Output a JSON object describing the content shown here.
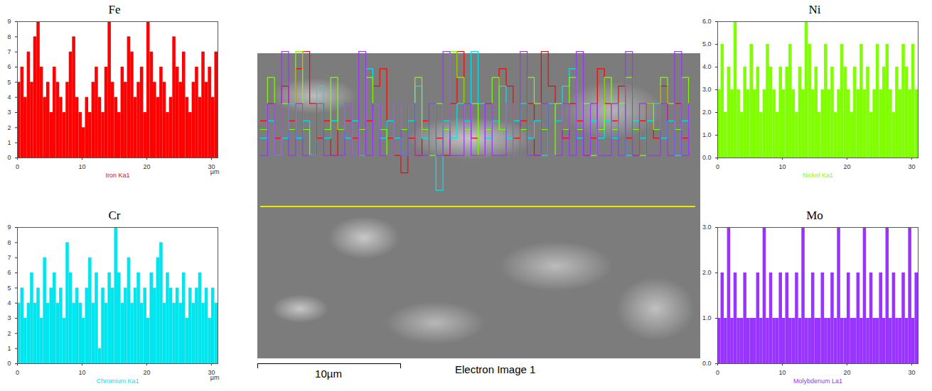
{
  "chart_data": [
    {
      "type": "bar",
      "title": "Fe",
      "xlabel": "Iron Ka1",
      "x_unit": "µm",
      "color": "#ff0000",
      "x": [
        0,
        0.5,
        1,
        1.5,
        2,
        2.5,
        3,
        3.5,
        4,
        4.5,
        5,
        5.5,
        6,
        6.5,
        7,
        7.5,
        8,
        8.5,
        9,
        9.5,
        10,
        10.5,
        11,
        11.5,
        12,
        12.5,
        13,
        13.5,
        14,
        14.5,
        15,
        15.5,
        16,
        16.5,
        17,
        17.5,
        18,
        18.5,
        19,
        19.5,
        20,
        20.5,
        21,
        21.5,
        22,
        22.5,
        23,
        23.5,
        24,
        24.5,
        25,
        25.5,
        26,
        26.5,
        27,
        27.5,
        28,
        28.5,
        29,
        29.5,
        30,
        30.5
      ],
      "values": [
        5,
        6,
        4,
        7,
        5,
        8,
        9,
        6,
        4,
        5,
        3,
        6,
        5,
        4,
        3,
        5,
        7,
        8,
        4,
        3,
        2,
        4,
        3,
        5,
        6,
        4,
        3,
        6,
        9,
        5,
        4,
        3,
        6,
        5,
        8,
        7,
        4,
        5,
        6,
        3,
        9,
        7,
        5,
        4,
        6,
        5,
        3,
        4,
        8,
        6,
        5,
        7,
        4,
        3,
        5,
        6,
        4,
        7,
        5,
        6,
        4,
        7
      ],
      "xlim": [
        0,
        31
      ],
      "xticks": [
        0,
        10,
        20,
        30
      ],
      "ylim": [
        0,
        9
      ],
      "yticks": [
        0,
        1,
        2,
        3,
        4,
        5,
        6,
        7,
        8,
        9
      ]
    },
    {
      "type": "bar",
      "title": "Cr",
      "xlabel": "Chromium Ka1",
      "x_unit": "µm",
      "color": "#00e5ee",
      "x": [
        0,
        0.5,
        1,
        1.5,
        2,
        2.5,
        3,
        3.5,
        4,
        4.5,
        5,
        5.5,
        6,
        6.5,
        7,
        7.5,
        8,
        8.5,
        9,
        9.5,
        10,
        10.5,
        11,
        11.5,
        12,
        12.5,
        13,
        13.5,
        14,
        14.5,
        15,
        15.5,
        16,
        16.5,
        17,
        17.5,
        18,
        18.5,
        19,
        19.5,
        20,
        20.5,
        21,
        21.5,
        22,
        22.5,
        23,
        23.5,
        24,
        24.5,
        25,
        25.5,
        26,
        26.5,
        27,
        27.5,
        28,
        28.5,
        29,
        29.5,
        30,
        30.5
      ],
      "values": [
        4,
        5,
        3,
        4,
        6,
        4,
        5,
        3,
        7,
        4,
        5,
        6,
        4,
        5,
        3,
        8,
        6,
        4,
        5,
        4,
        3,
        5,
        7,
        4,
        6,
        1,
        5,
        4,
        6,
        5,
        9,
        6,
        4,
        5,
        7,
        4,
        5,
        6,
        4,
        5,
        3,
        6,
        5,
        7,
        8,
        4,
        6,
        5,
        4,
        5,
        4,
        6,
        3,
        5,
        4,
        5,
        6,
        4,
        5,
        3,
        5,
        4
      ],
      "xlim": [
        0,
        31
      ],
      "xticks": [
        0,
        10,
        20,
        30
      ],
      "ylim": [
        0,
        9
      ],
      "yticks": [
        0,
        1,
        2,
        3,
        4,
        5,
        6,
        7,
        8,
        9
      ]
    },
    {
      "type": "bar",
      "title": "Ni",
      "xlabel": "Nickel Ka1",
      "color": "#80ff00",
      "x": [
        0,
        0.5,
        1,
        1.5,
        2,
        2.5,
        3,
        3.5,
        4,
        4.5,
        5,
        5.5,
        6,
        6.5,
        7,
        7.5,
        8,
        8.5,
        9,
        9.5,
        10,
        10.5,
        11,
        11.5,
        12,
        12.5,
        13,
        13.5,
        14,
        14.5,
        15,
        15.5,
        16,
        16.5,
        17,
        17.5,
        18,
        18.5,
        19,
        19.5,
        20,
        20.5,
        21,
        21.5,
        22,
        22.5,
        23,
        23.5,
        24,
        24.5,
        25,
        25.5,
        26,
        26.5,
        27,
        27.5,
        28,
        28.5,
        29,
        29.5,
        30,
        30.5
      ],
      "values": [
        3,
        5,
        2,
        4,
        3,
        6,
        3,
        2,
        4,
        3,
        5,
        3,
        4,
        2,
        3,
        5,
        4,
        3,
        2,
        4,
        3,
        4,
        5,
        3,
        2,
        4,
        3,
        6,
        5,
        3,
        4,
        2,
        3,
        5,
        3,
        4,
        2,
        3,
        5,
        4,
        3,
        2,
        4,
        3,
        5,
        3,
        4,
        2,
        3,
        5,
        3,
        4,
        5,
        3,
        2,
        4,
        3,
        5,
        4,
        3,
        5,
        3
      ],
      "xlim": [
        0,
        31
      ],
      "xticks": [
        0,
        10,
        20,
        30
      ],
      "ylim": [
        0,
        6
      ],
      "yticks": [
        0,
        1,
        2,
        3,
        4,
        5,
        6
      ]
    },
    {
      "type": "bar",
      "title": "Mo",
      "xlabel": "Molybdenum La1",
      "color": "#9933ff",
      "x": [
        0,
        0.5,
        1,
        1.5,
        2,
        2.5,
        3,
        3.5,
        4,
        4.5,
        5,
        5.5,
        6,
        6.5,
        7,
        7.5,
        8,
        8.5,
        9,
        9.5,
        10,
        10.5,
        11,
        11.5,
        12,
        12.5,
        13,
        13.5,
        14,
        14.5,
        15,
        15.5,
        16,
        16.5,
        17,
        17.5,
        18,
        18.5,
        19,
        19.5,
        20,
        20.5,
        21,
        21.5,
        22,
        22.5,
        23,
        23.5,
        24,
        24.5,
        25,
        25.5,
        26,
        26.5,
        27,
        27.5,
        28,
        28.5,
        29,
        29.5,
        30,
        30.5
      ],
      "values": [
        1,
        2,
        1,
        3,
        1,
        2,
        1,
        1,
        2,
        1,
        1,
        1,
        2,
        1,
        3,
        1,
        2,
        1,
        1,
        2,
        1,
        2,
        1,
        1,
        2,
        1,
        3,
        1,
        1,
        2,
        1,
        1,
        2,
        1,
        1,
        2,
        1,
        3,
        1,
        1,
        2,
        1,
        1,
        2,
        1,
        3,
        1,
        2,
        1,
        1,
        2,
        1,
        3,
        1,
        2,
        1,
        1,
        2,
        1,
        3,
        1,
        2
      ],
      "xlim": [
        0,
        31
      ],
      "xticks": [
        0,
        10,
        20,
        30
      ],
      "ylim": [
        0,
        3
      ],
      "yticks": [
        0,
        1,
        2,
        3
      ]
    }
  ],
  "electron_image": {
    "title": "Electron Image 1",
    "scale_bar": "10µm"
  }
}
